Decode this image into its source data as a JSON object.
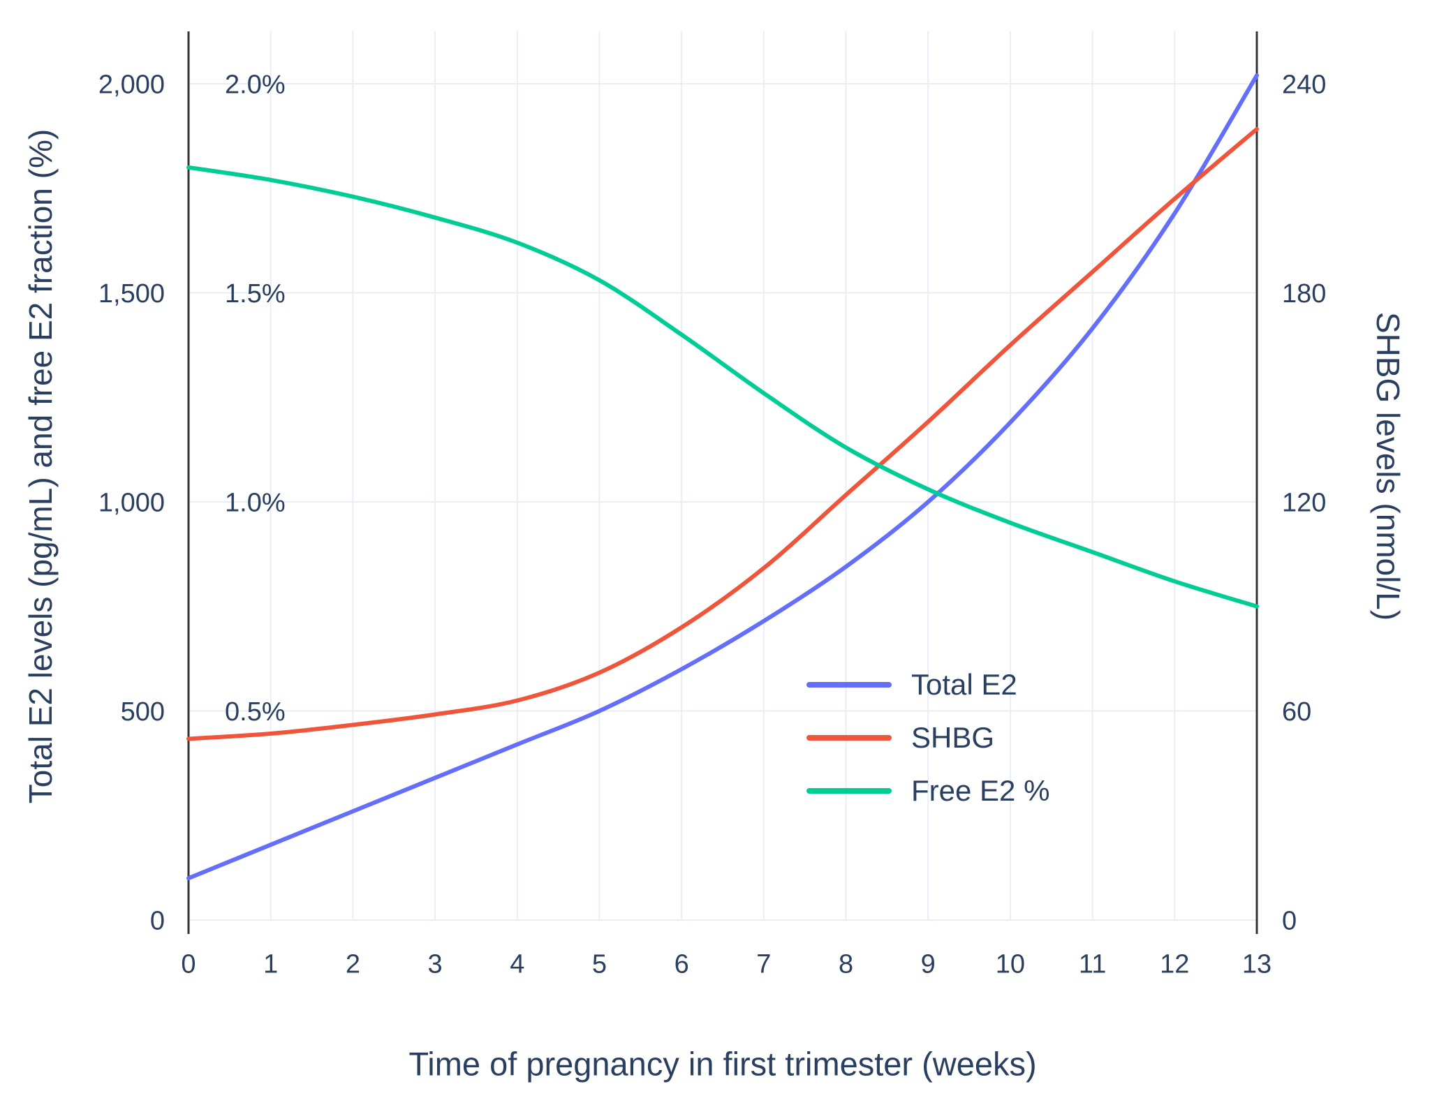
{
  "figure": {
    "background_color": "#ffffff",
    "grid_color": "#e9eef6",
    "axis_line_color": "#333333",
    "text_color": "#2a3f5f"
  },
  "chart_data": {
    "type": "line",
    "title": "",
    "xlabel": "Time of pregnancy in first trimester (weeks)",
    "y_left_label": "Total E2 levels (pg/mL) and free E2 fraction (%)",
    "y_right_label": "SHBG levels (nmol/L)",
    "x": [
      0,
      1,
      2,
      3,
      4,
      5,
      6,
      7,
      8,
      9,
      10,
      11,
      12,
      13
    ],
    "x_tick_labels": [
      "0",
      "1",
      "2",
      "3",
      "4",
      "5",
      "6",
      "7",
      "8",
      "9",
      "10",
      "11",
      "12",
      "13"
    ],
    "left_axis": {
      "range": [
        0,
        2125
      ],
      "tick_values": [
        0,
        500,
        1000,
        1500,
        2000
      ],
      "tick_labels": [
        "0",
        "500",
        "1,000",
        "1,500",
        "2,000"
      ]
    },
    "percent_axis": {
      "note": "percent scale shares left axis, 2.0% aligns with 2,000",
      "tick_values": [
        500,
        1000,
        1500,
        2000
      ],
      "tick_labels": [
        "0.5%",
        "1.0%",
        "1.5%",
        "2.0%"
      ]
    },
    "right_axis": {
      "range": [
        0,
        255
      ],
      "tick_values": [
        0,
        60,
        120,
        180,
        240
      ],
      "tick_labels": [
        "0",
        "60",
        "120",
        "180",
        "240"
      ]
    },
    "grid": true,
    "legend_position": "inside-right",
    "series": [
      {
        "name": "Total E2",
        "color": "#636EFA",
        "axis": "left",
        "unit": "pg/mL",
        "values": [
          100,
          180,
          260,
          340,
          420,
          500,
          600,
          715,
          845,
          1000,
          1190,
          1415,
          1690,
          2020
        ]
      },
      {
        "name": "SHBG",
        "color": "#EF553B",
        "axis": "right",
        "unit": "nmol/L",
        "values": [
          52,
          53.5,
          56,
          59,
          63,
          71,
          84,
          101,
          122,
          143,
          165,
          186,
          207,
          227
        ]
      },
      {
        "name": "Free E2 %",
        "color": "#00CC96",
        "axis": "percent",
        "unit": "%",
        "values": [
          1.8,
          1.77,
          1.73,
          1.68,
          1.62,
          1.53,
          1.4,
          1.26,
          1.13,
          1.03,
          0.95,
          0.88,
          0.81,
          0.75
        ]
      }
    ]
  }
}
